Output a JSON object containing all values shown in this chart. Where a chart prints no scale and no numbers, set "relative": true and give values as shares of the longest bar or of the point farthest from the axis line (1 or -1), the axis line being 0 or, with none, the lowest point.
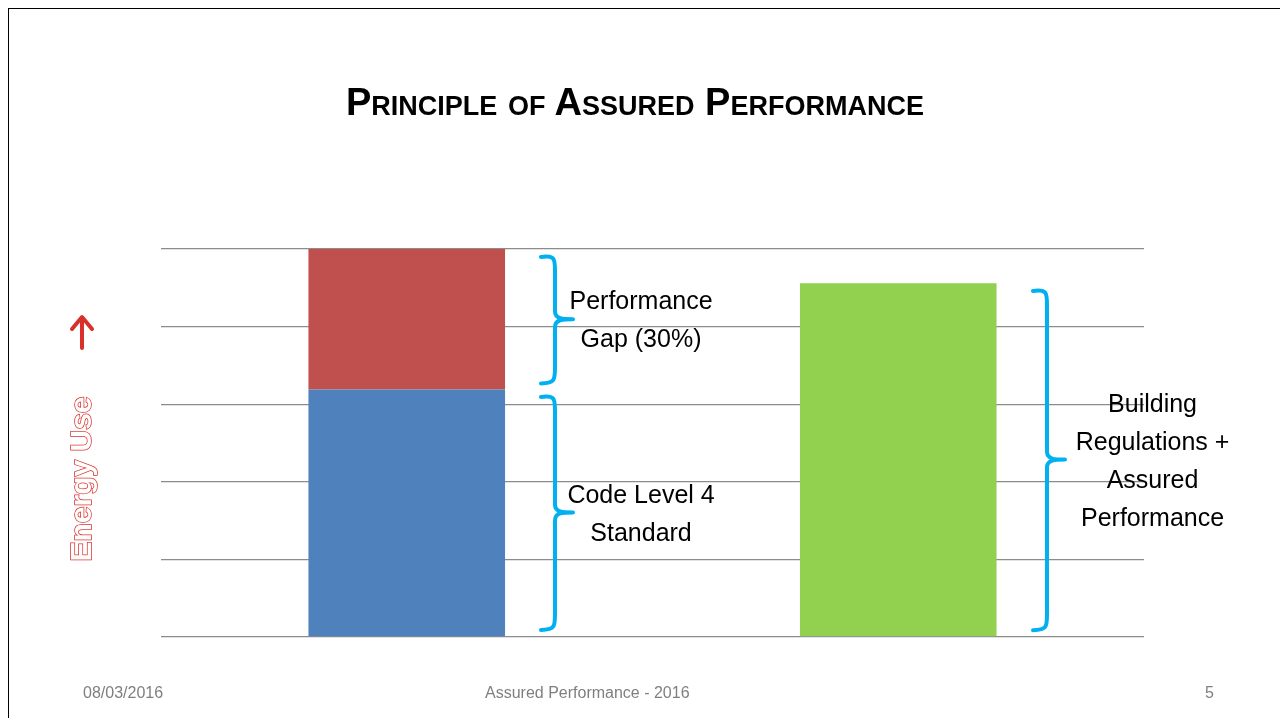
{
  "chart_data": {
    "type": "bar",
    "title": "Principle of Assured Performance",
    "ylabel": "Energy Use",
    "categories": [
      null,
      null
    ],
    "stacked": true,
    "relative": true,
    "grid": "y",
    "legend": false,
    "series": [
      {
        "colors": [
          "#4f81bd",
          "#92d050"
        ],
        "values": [
          0.638,
          0.912
        ]
      },
      {
        "color": "#c0504d",
        "values": [
          0.362,
          null
        ]
      }
    ],
    "annotations": [
      "Performance Gap (30%)",
      "Code Level 4 Standard",
      "Building Regulations + Assured Performance",
      "08/03/2016",
      "Assured Performance - 2016",
      "5"
    ]
  }
}
